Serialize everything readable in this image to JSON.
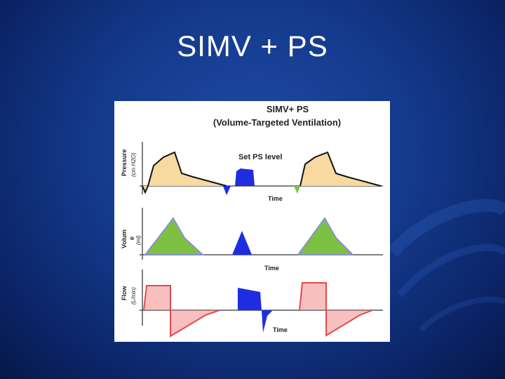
{
  "slide": {
    "title": "SIMV + PS",
    "background_color": "#143a8c"
  },
  "diagram": {
    "title_line1": "SIMV+ PS",
    "title_line2": "(Volume-Targeted Ventilation)",
    "annotation": "Set PS level",
    "panels": [
      {
        "ylabel": "Pressure",
        "yunit": "(cm H2O)",
        "xlabel": "Time"
      },
      {
        "ylabel_line1": "Volum",
        "ylabel_line2": "e",
        "yunit": "(ml)",
        "xlabel": "Time"
      },
      {
        "ylabel": "Flow",
        "yunit": "(L/min)",
        "xlabel": "Time"
      }
    ],
    "colors": {
      "mandatory_pressure_fill": "#f8d9a0",
      "mandatory_volume_fill": "#7dc142",
      "mandatory_flow_fill": "#f28b8b",
      "spontaneous_ps_fill": "#1f2de0",
      "trigger_green": "#7dc142"
    }
  }
}
